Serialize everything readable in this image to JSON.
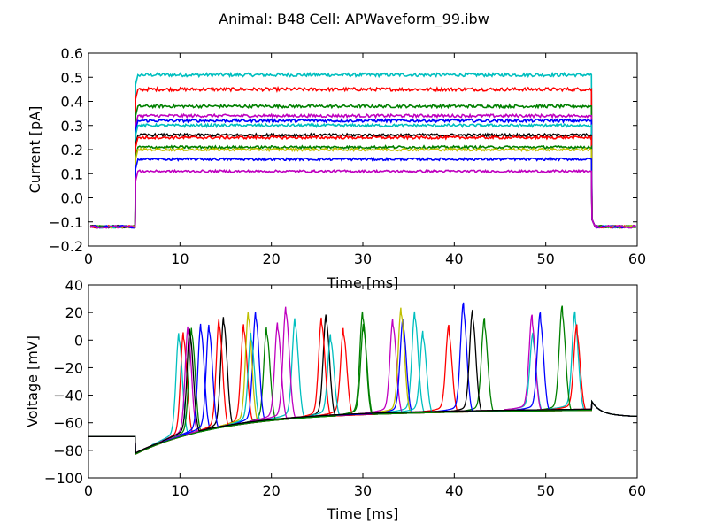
{
  "figure": {
    "suptitle": "Animal: B48 Cell: APWaveform_99.ibw"
  },
  "colors": [
    "#00bfbf",
    "#ff0000",
    "#008000",
    "#bf00bf",
    "#0000ff",
    "#000000",
    "#bfbf00"
  ],
  "chart_data": [
    {
      "type": "line",
      "title": "",
      "xlabel": "Time [ms]",
      "ylabel": "Current [pA]",
      "xlim": [
        0,
        60
      ],
      "ylim": [
        -0.2,
        0.6
      ],
      "xticks": [
        0,
        10,
        20,
        30,
        40,
        50,
        60
      ],
      "yticks": [
        -0.2,
        -0.1,
        0.0,
        0.1,
        0.2,
        0.3,
        0.4,
        0.5,
        0.6
      ],
      "xtick_labels": [
        "0",
        "10",
        "20",
        "30",
        "40",
        "50",
        "60"
      ],
      "ytick_labels": [
        "−0.2",
        "−0.1",
        "0.0",
        "0.1",
        "0.2",
        "0.3",
        "0.4",
        "0.5",
        "0.6"
      ],
      "stimulus": {
        "baseline": -0.12,
        "on_ms": 5.1,
        "off_ms": 55.0
      },
      "series_levels": [
        0.51,
        0.45,
        0.38,
        0.34,
        0.32,
        0.3,
        0.26,
        0.25,
        0.21,
        0.2,
        0.16,
        0.11
      ],
      "series_colors": [
        "#00bfbf",
        "#ff0000",
        "#008000",
        "#bf00bf",
        "#0000ff",
        "#00bfbf",
        "#000000",
        "#ff0000",
        "#008000",
        "#bfbf00",
        "#0000ff",
        "#bf00bf"
      ]
    },
    {
      "type": "line",
      "title": "",
      "xlabel": "Time [ms]",
      "ylabel": "Voltage [mV]",
      "xlim": [
        0,
        60
      ],
      "ylim": [
        -100,
        40
      ],
      "xticks": [
        0,
        10,
        20,
        30,
        40,
        50,
        60
      ],
      "yticks": [
        -100,
        -80,
        -60,
        -40,
        -20,
        0,
        20,
        40
      ],
      "xtick_labels": [
        "0",
        "10",
        "20",
        "30",
        "40",
        "50",
        "60"
      ],
      "ytick_labels": [
        "−100",
        "−80",
        "−60",
        "−40",
        "−20",
        "0",
        "20",
        "40"
      ],
      "rest_mV": -70,
      "stim_on_ms": 5.1,
      "stim_off_ms": 55.0,
      "series": [
        {
          "color": "#00bfbf",
          "spikes": [
            [
              9.9,
              15
            ],
            [
              22.6,
              12
            ],
            [
              35.7,
              13
            ],
            [
              48.6,
              -5
            ],
            [
              53.2,
              10
            ]
          ]
        },
        {
          "color": "#ff0000",
          "spikes": [
            [
              10.4,
              15
            ],
            [
              17.0,
              12
            ],
            [
              27.9,
              3
            ],
            [
              39.4,
              2
            ],
            [
              53.4,
              1
            ]
          ]
        },
        {
          "color": "#008000",
          "spikes": [
            [
              11.3,
              17
            ],
            [
              19.5,
              8
            ],
            [
              30.0,
              15
            ],
            [
              43.3,
              7
            ],
            [
              51.8,
              15
            ]
          ]
        },
        {
          "color": "#bf00bf",
          "spikes": [
            [
              10.9,
              18
            ],
            [
              21.6,
              21
            ],
            [
              33.3,
              8
            ],
            [
              48.5,
              8
            ]
          ]
        },
        {
          "color": "#0000ff",
          "spikes": [
            [
              12.3,
              18
            ],
            [
              18.3,
              20
            ],
            [
              34.4,
              8
            ],
            [
              41.0,
              18
            ],
            [
              49.4,
              10
            ]
          ]
        },
        {
          "color": "#000000",
          "spikes": [
            [
              14.8,
              20
            ],
            [
              26.0,
              14
            ],
            [
              42.0,
              13
            ]
          ]
        },
        {
          "color": "#bfbf00",
          "spikes": [
            [
              17.5,
              20
            ],
            [
              34.2,
              16
            ]
          ]
        },
        {
          "color": "#00bfbf",
          "spikes": [
            [
              17.8,
              5
            ],
            [
              26.5,
              -1
            ],
            [
              36.6,
              -1
            ]
          ]
        },
        {
          "color": "#ff0000",
          "spikes": [
            [
              14.3,
              19
            ],
            [
              25.5,
              12
            ]
          ]
        },
        {
          "color": "#bf00bf",
          "spikes": [
            [
              20.7,
              10
            ]
          ]
        },
        {
          "color": "#0000ff",
          "spikes": [
            [
              13.2,
              16
            ]
          ]
        },
        {
          "color": "#008000",
          "spikes": [
            [
              30.1,
              6
            ]
          ]
        },
        {
          "color": "#000000",
          "spikes": [
            [
              11.1,
              16
            ]
          ]
        }
      ]
    }
  ]
}
